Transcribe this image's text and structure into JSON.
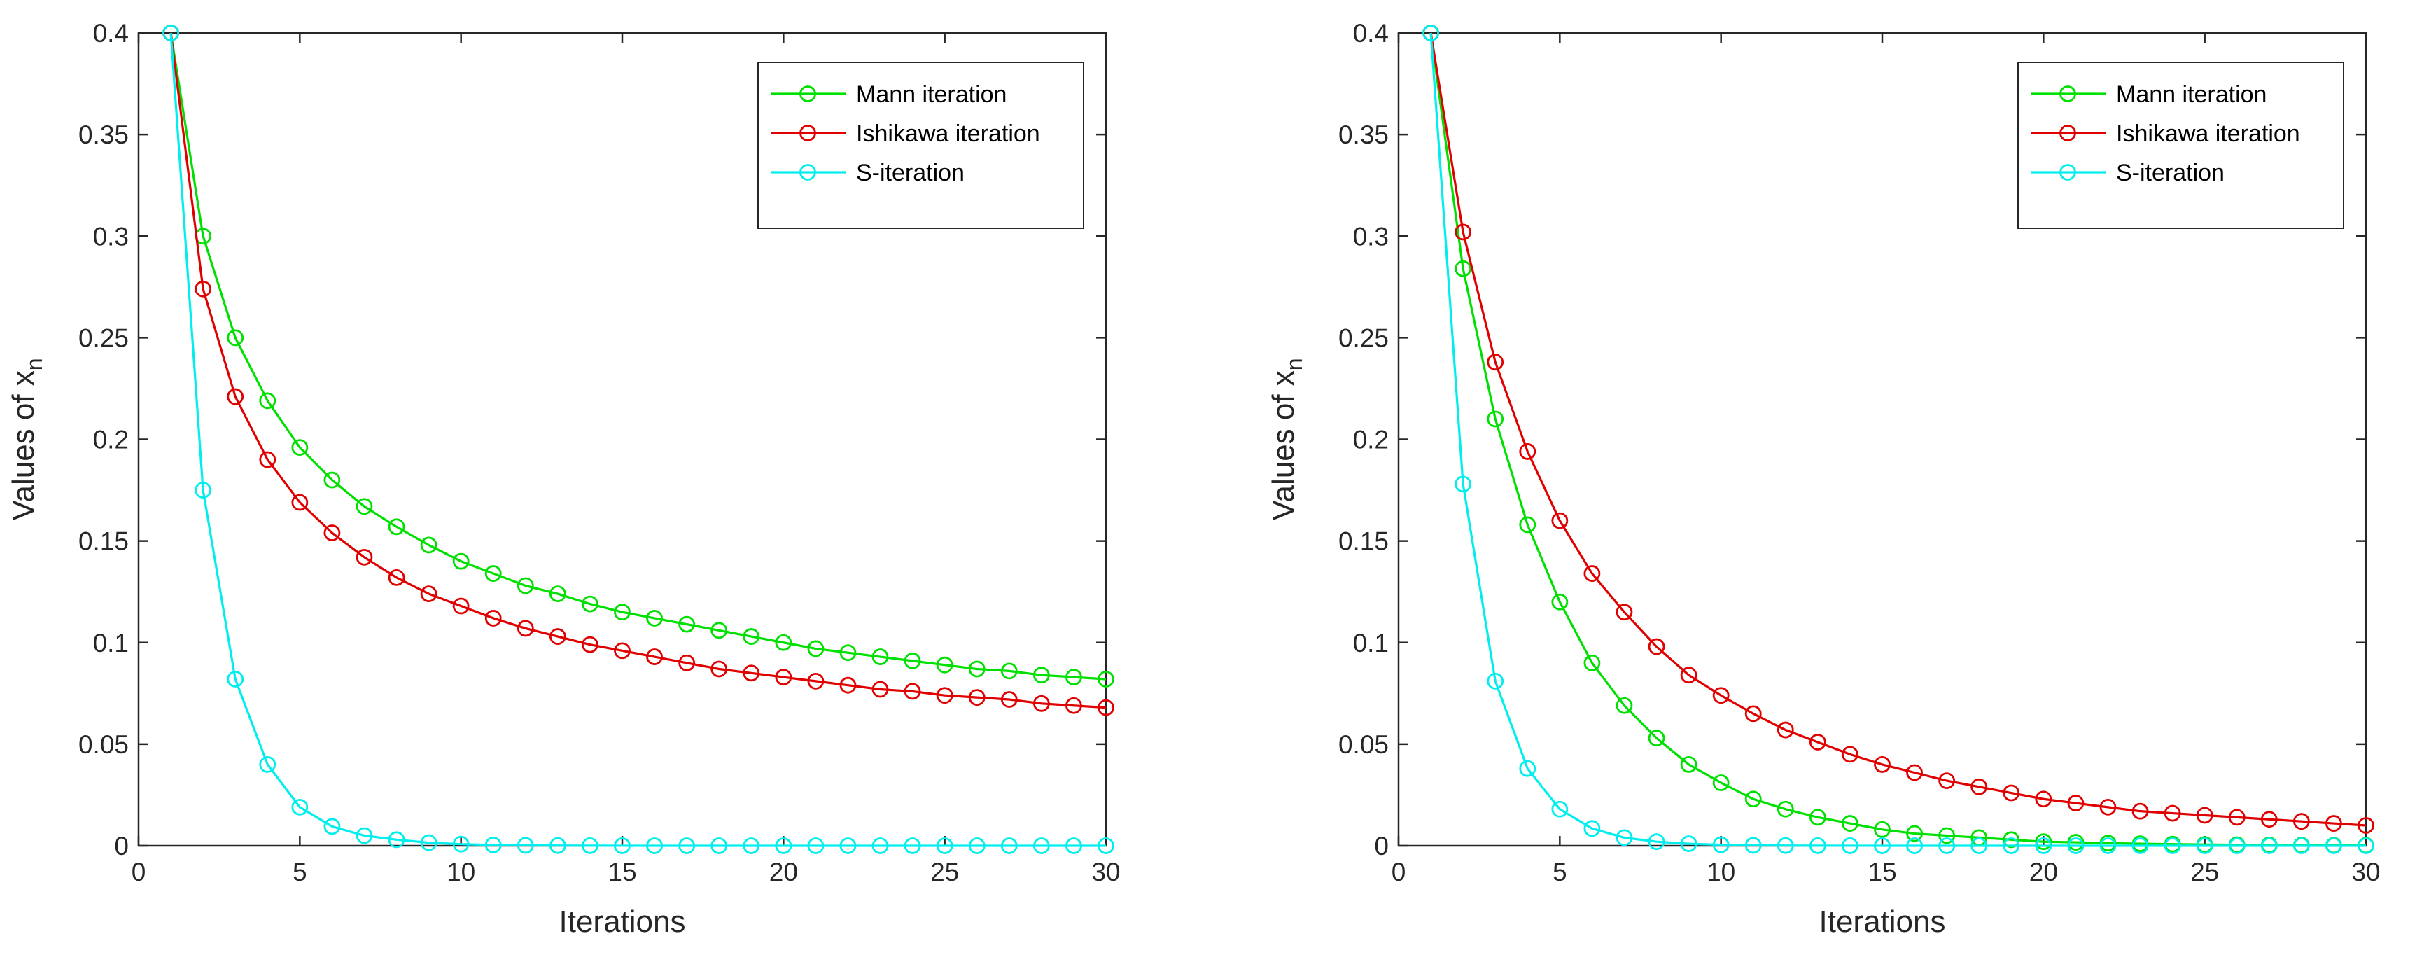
{
  "chart_data": [
    {
      "type": "line",
      "title": "",
      "xlabel": "Iterations",
      "ylabel": "Values of x",
      "ylabel_subscript": "n",
      "xlim": [
        0,
        30
      ],
      "ylim": [
        0,
        0.4
      ],
      "xticks": [
        0,
        5,
        10,
        15,
        20,
        25,
        30
      ],
      "xtick_labels": [
        "0",
        "5",
        "10",
        "15",
        "20",
        "25",
        "30"
      ],
      "yticks": [
        0,
        0.05,
        0.1,
        0.15,
        0.2,
        0.25,
        0.3,
        0.35,
        0.4
      ],
      "ytick_labels": [
        "0",
        "0.05",
        "0.1",
        "0.15",
        "0.2",
        "0.25",
        "0.3",
        "0.35",
        "0.4"
      ],
      "legend_position": "top-right",
      "x": [
        1,
        2,
        3,
        4,
        5,
        6,
        7,
        8,
        9,
        10,
        11,
        12,
        13,
        14,
        15,
        16,
        17,
        18,
        19,
        20,
        21,
        22,
        23,
        24,
        25,
        26,
        27,
        28,
        29,
        30
      ],
      "series": [
        {
          "name": "Mann iteration",
          "color": "#00e000",
          "values": [
            0.4,
            0.3,
            0.25,
            0.219,
            0.196,
            0.18,
            0.167,
            0.157,
            0.148,
            0.14,
            0.134,
            0.128,
            0.124,
            0.119,
            0.115,
            0.112,
            0.109,
            0.106,
            0.103,
            0.1,
            0.097,
            0.095,
            0.093,
            0.091,
            0.089,
            0.087,
            0.086,
            0.084,
            0.083,
            0.082
          ]
        },
        {
          "name": "Ishikawa iteration",
          "color": "#e00000",
          "values": [
            0.4,
            0.274,
            0.221,
            0.19,
            0.169,
            0.154,
            0.142,
            0.132,
            0.124,
            0.118,
            0.112,
            0.107,
            0.103,
            0.099,
            0.096,
            0.093,
            0.09,
            0.087,
            0.085,
            0.083,
            0.081,
            0.079,
            0.077,
            0.076,
            0.074,
            0.073,
            0.072,
            0.07,
            0.069,
            0.068
          ]
        },
        {
          "name": "S-iteration",
          "color": "#00eeee",
          "values": [
            0.4,
            0.175,
            0.082,
            0.04,
            0.019,
            0.0095,
            0.005,
            0.003,
            0.0015,
            0.0008,
            0.0004,
            0.0002,
            0.0001,
            5e-05,
            3e-05,
            1e-05,
            0,
            0,
            0,
            0,
            0,
            0,
            0,
            0,
            0,
            0,
            0,
            0,
            0,
            0
          ]
        }
      ]
    },
    {
      "type": "line",
      "title": "",
      "xlabel": "Iterations",
      "ylabel": "Values of x",
      "ylabel_subscript": "n",
      "xlim": [
        0,
        30
      ],
      "ylim": [
        0,
        0.4
      ],
      "xticks": [
        0,
        5,
        10,
        15,
        20,
        25,
        30
      ],
      "xtick_labels": [
        "0",
        "5",
        "10",
        "15",
        "20",
        "25",
        "30"
      ],
      "yticks": [
        0,
        0.05,
        0.1,
        0.15,
        0.2,
        0.25,
        0.3,
        0.35,
        0.4
      ],
      "ytick_labels": [
        "0",
        "0.05",
        "0.1",
        "0.15",
        "0.2",
        "0.25",
        "0.3",
        "0.35",
        "0.4"
      ],
      "legend_position": "top-right",
      "x": [
        1,
        2,
        3,
        4,
        5,
        6,
        7,
        8,
        9,
        10,
        11,
        12,
        13,
        14,
        15,
        16,
        17,
        18,
        19,
        20,
        21,
        22,
        23,
        24,
        25,
        26,
        27,
        28,
        29,
        30
      ],
      "series": [
        {
          "name": "Mann iteration",
          "color": "#00e000",
          "values": [
            0.4,
            0.284,
            0.21,
            0.158,
            0.12,
            0.09,
            0.069,
            0.053,
            0.04,
            0.031,
            0.023,
            0.018,
            0.014,
            0.011,
            0.008,
            0.006,
            0.005,
            0.004,
            0.003,
            0.002,
            0.0017,
            0.0013,
            0.001,
            0.0008,
            0.0006,
            0.0005,
            0.0004,
            0.0003,
            0.0002,
            0.0002
          ]
        },
        {
          "name": "Ishikawa iteration",
          "color": "#e00000",
          "values": [
            0.4,
            0.302,
            0.238,
            0.194,
            0.16,
            0.134,
            0.115,
            0.098,
            0.084,
            0.074,
            0.065,
            0.057,
            0.051,
            0.045,
            0.04,
            0.036,
            0.032,
            0.029,
            0.026,
            0.023,
            0.021,
            0.019,
            0.017,
            0.016,
            0.015,
            0.014,
            0.013,
            0.012,
            0.011,
            0.01
          ]
        },
        {
          "name": "S-iteration",
          "color": "#00eeee",
          "values": [
            0.4,
            0.178,
            0.081,
            0.038,
            0.018,
            0.0085,
            0.004,
            0.002,
            0.001,
            0.0005,
            0.0002,
            0.0001,
            5e-05,
            2e-05,
            1e-05,
            0,
            0,
            0,
            0,
            0,
            0,
            0,
            0,
            0,
            0,
            0,
            0,
            0,
            0,
            0
          ]
        }
      ]
    }
  ]
}
